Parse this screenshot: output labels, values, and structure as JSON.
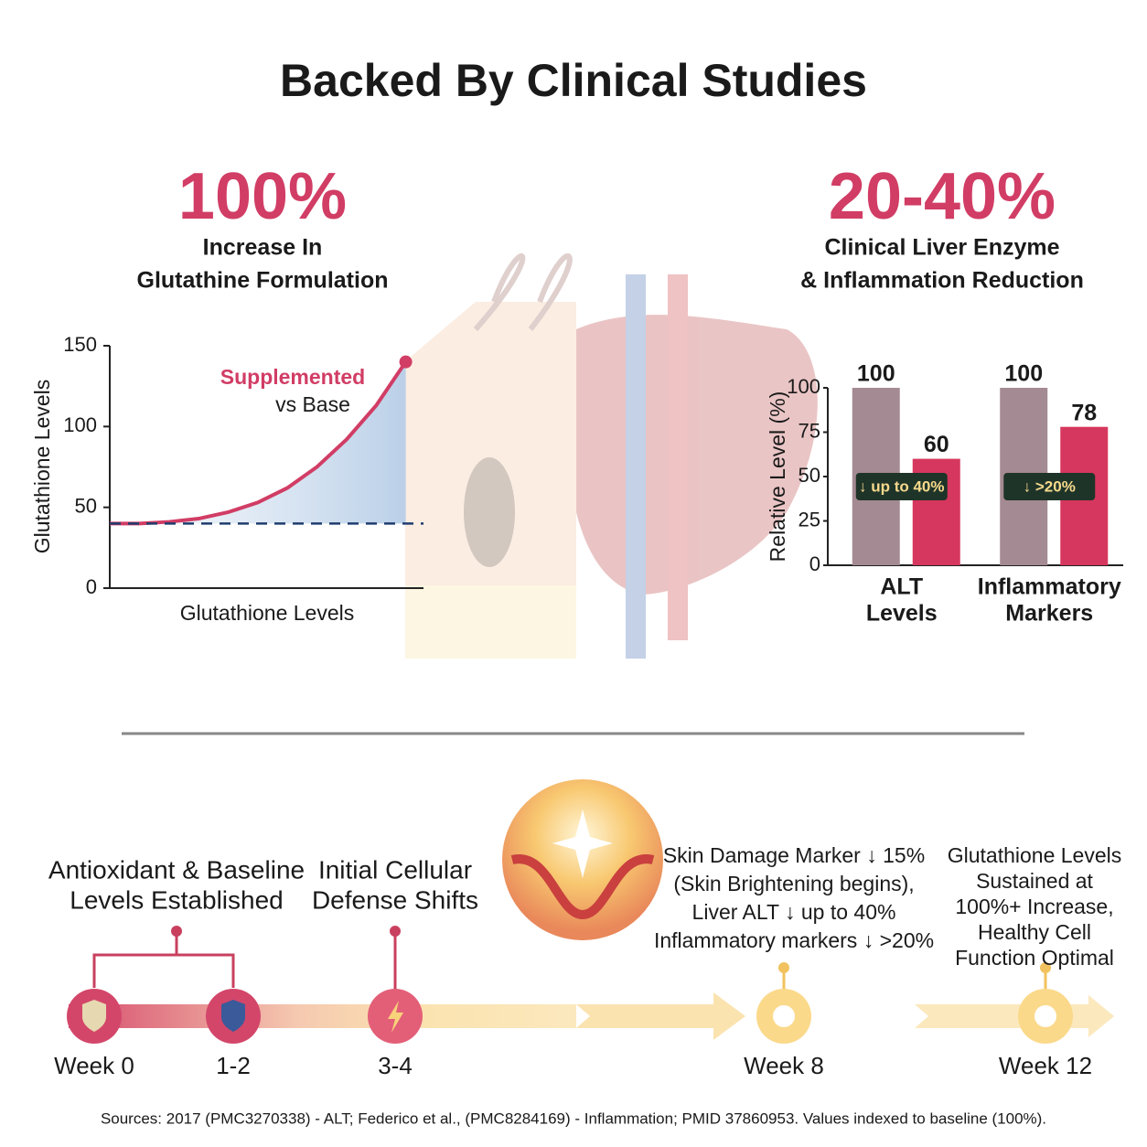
{
  "title": "Backed By Clinical Studies",
  "stats": [
    {
      "value": "100%",
      "caption": [
        "Increase In",
        "Glutathine Formulation"
      ]
    },
    {
      "value": "20-40%",
      "caption": [
        "Clinical Liver Enzyme",
        "& Inflammation Reduction"
      ]
    }
  ],
  "chart_data": [
    {
      "type": "line",
      "ylabel": "Glutathione Levels",
      "xlabel": "Glutathione Levels",
      "x": [
        0,
        1,
        2,
        3,
        4,
        5,
        6,
        7,
        8,
        9,
        10
      ],
      "xlim": [
        0,
        10.6
      ],
      "ylim": [
        0,
        150
      ],
      "yticks": [
        0,
        50,
        100,
        150
      ],
      "series": [
        {
          "name": "Supplemented",
          "color": "#d13d65",
          "values": [
            40,
            40,
            41,
            43,
            47,
            53,
            62,
            75,
            92,
            113,
            140
          ]
        }
      ],
      "baseline": 40,
      "baseline_color": "#1f3c6e",
      "annotation": "vs Base"
    },
    {
      "type": "bar",
      "ylabel": "Relative Level (%)",
      "categories": [
        [
          "ALT",
          "Levels"
        ],
        [
          "Inflammatory",
          "Markers"
        ]
      ],
      "ylim": [
        0,
        100
      ],
      "yticks": [
        0,
        25,
        50,
        75,
        100
      ],
      "series": [
        {
          "color": "#a48a92",
          "values": [
            100,
            100
          ]
        },
        {
          "color": "#d6375e",
          "values": [
            60,
            78
          ]
        }
      ],
      "annotations": [
        "↓ up to 40%",
        "↓ >20%"
      ]
    }
  ],
  "timeline": {
    "milestones": [
      "Week 0",
      "1-2",
      "3-4",
      "Week 8",
      "Week 12"
    ],
    "notes": [
      [
        "Antioxidant & Baseline",
        "Levels Established"
      ],
      [
        "Initial Cellular",
        "Defense Shifts"
      ],
      [
        "Skin Damage Marker ↓ 15%",
        "(Skin Brightening begins),",
        "Liver ALT ↓ up to 40%",
        "Inflammatory markers ↓ >20%"
      ],
      [
        "Glutathione Levels",
        "Sustained at",
        "100%+ Increase,",
        "Healthy Cell",
        "Function Optimal"
      ]
    ]
  },
  "sources": "Sources: 2017 (PMC3270338) - ALT; Federico et al., (PMC8284169) - Inflammation; PMID 37860953. Values indexed to baseline (100%)."
}
